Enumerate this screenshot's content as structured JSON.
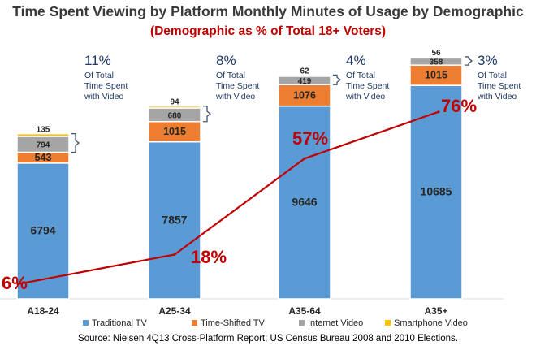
{
  "title": "Time Spent Viewing by Platform Monthly Minutes of Usage by Demographic",
  "subtitle": "(Demographic as % of Total 18+ Voters)",
  "source": "Source:  Nielsen 4Q13 Cross-Platform Report; US Census Bureau 2008 and 2010 Elections.",
  "colors": {
    "traditional": "#5b9bd5",
    "timeshifted": "#ed7d31",
    "internet": "#a5a5a5",
    "smartphone": "#ffc000",
    "line": "#c00000",
    "callout_text": "#1f3864"
  },
  "chart_data": {
    "type": "bar",
    "stacked": true,
    "categories": [
      "A18-24",
      "A25-34",
      "A35-64",
      "A35+"
    ],
    "series": [
      {
        "name": "Traditional TV",
        "values": [
          6794,
          7857,
          9646,
          10685
        ]
      },
      {
        "name": "Time-Shifted TV",
        "values": [
          543,
          1015,
          1076,
          1015
        ]
      },
      {
        "name": "Internet Video",
        "values": [
          794,
          680,
          419,
          358
        ]
      },
      {
        "name": "Smartphone Video",
        "values": [
          135,
          94,
          62,
          56
        ]
      }
    ],
    "video_share": {
      "values": [
        "11%",
        "8%",
        "4%",
        "3%"
      ],
      "caption": [
        "Of Total",
        "Time Spent",
        "with Video"
      ]
    },
    "line": {
      "values": [
        6,
        18,
        57,
        76
      ],
      "labels": [
        "6%",
        "18%",
        "57%",
        "76%"
      ],
      "ylim": [
        0,
        100
      ]
    },
    "ylim": [
      0,
      12600
    ],
    "legend_position": "bottom",
    "grid": false
  }
}
